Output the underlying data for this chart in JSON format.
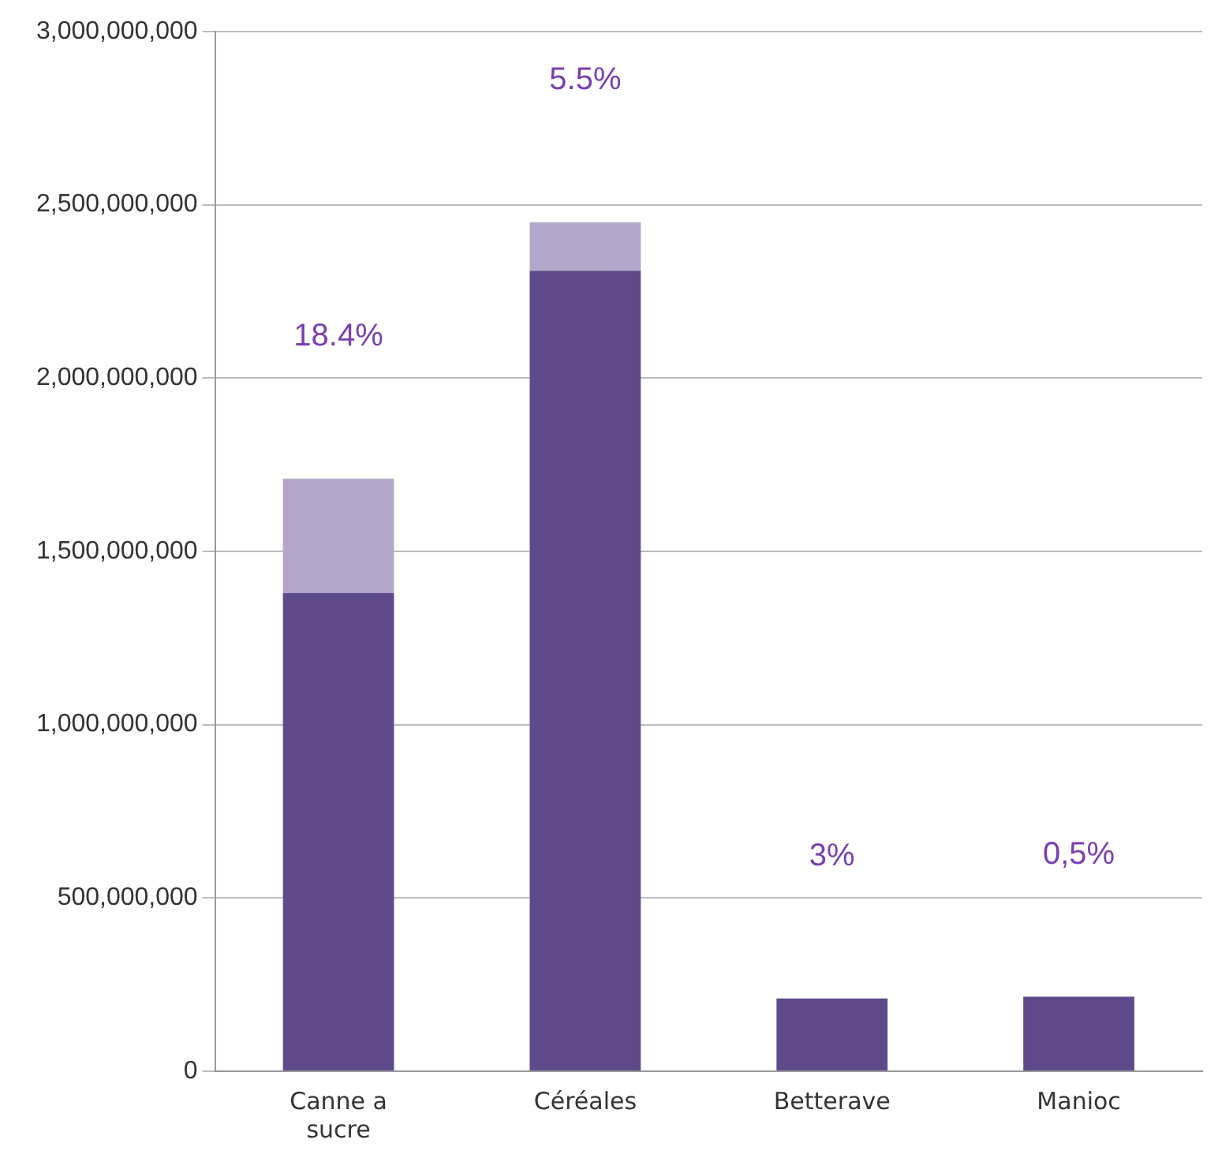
{
  "chart_data": {
    "type": "bar",
    "stacked": true,
    "categories": [
      "Canne a sucre",
      "Céréales",
      "Betterave",
      "Manioc"
    ],
    "series": [
      {
        "color": "#5e4a8b",
        "values": [
          1380000000,
          2310000000,
          210000000,
          215000000
        ]
      },
      {
        "color": "#b3a8cc",
        "values": [
          330000000,
          140000000,
          null,
          null
        ]
      }
    ],
    "ylim": [
      0,
      3000000000
    ],
    "yticks": [
      {
        "value": 0,
        "label": "0"
      },
      {
        "value": 500000000,
        "label": "500,000,000"
      },
      {
        "value": 1000000000,
        "label": "1,000,000,000"
      },
      {
        "value": 1500000000,
        "label": "1,500,000,000"
      },
      {
        "value": 2000000000,
        "label": "2,000,000,000"
      },
      {
        "value": 2500000000,
        "label": "2,500,000,000"
      },
      {
        "value": 3000000000,
        "label": "3,000,000,000"
      }
    ],
    "grid": "y",
    "legend": false,
    "annotations": [
      "18.4%",
      "5.5%",
      "3%",
      "0,5%"
    ]
  }
}
